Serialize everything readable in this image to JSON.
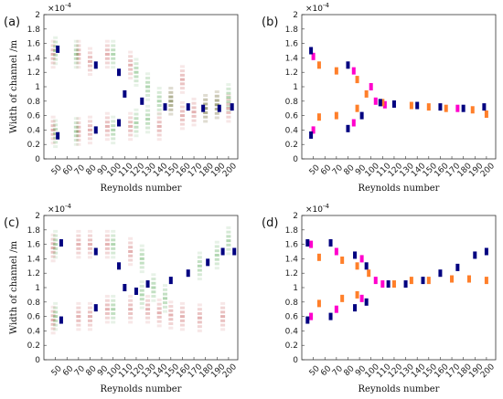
{
  "chart_data": [
    {
      "type": "scatter",
      "panel_label": "(a)",
      "xlabel": "Reynolds number",
      "ylabel": "Width of channel /m",
      "y_multiplier": "×10",
      "y_multiplier_exp": "-4",
      "x_ticks": [
        50,
        60,
        70,
        80,
        90,
        100,
        110,
        120,
        130,
        140,
        150,
        160,
        170,
        180,
        190,
        200
      ],
      "y_ticks": [
        0,
        0.2,
        0.4,
        0.6,
        0.8,
        1,
        1.2,
        1.4,
        1.6,
        1.8,
        2
      ],
      "ylim": [
        0,
        2
      ],
      "series": [
        {
          "color": "#b22222",
          "style": "smear",
          "points": [
            [
              48,
              1.45
            ],
            [
              48,
              0.4
            ],
            [
              70,
              1.45
            ],
            [
              70,
              0.38
            ],
            [
              80,
              1.35
            ],
            [
              80,
              0.4
            ],
            [
              95,
              1.45
            ],
            [
              95,
              0.45
            ],
            [
              115,
              1.3
            ],
            [
              115,
              0.45
            ],
            [
              140,
              0.45
            ],
            [
              150,
              0.8
            ],
            [
              160,
              0.6
            ],
            [
              160,
              1.1
            ],
            [
              170,
              0.65
            ],
            [
              180,
              0.7
            ],
            [
              190,
              0.75
            ],
            [
              200,
              0.7
            ]
          ]
        },
        {
          "color": "#228b22",
          "style": "smear",
          "points": [
            [
              50,
              1.5
            ],
            [
              50,
              0.35
            ],
            [
              68,
              1.45
            ],
            [
              68,
              0.38
            ],
            [
              100,
              1.45
            ],
            [
              100,
              0.4
            ],
            [
              120,
              1.2
            ],
            [
              120,
              0.5
            ],
            [
              130,
              1.0
            ],
            [
              130,
              0.55
            ],
            [
              140,
              0.8
            ],
            [
              150,
              0.8
            ],
            [
              180,
              0.7
            ],
            [
              190,
              0.75
            ],
            [
              200,
              0.85
            ]
          ]
        },
        {
          "color": "#000080",
          "style": "mean",
          "points": [
            [
              52,
              1.52
            ],
            [
              52,
              0.32
            ],
            [
              85,
              1.3
            ],
            [
              85,
              0.4
            ],
            [
              105,
              1.2
            ],
            [
              105,
              0.5
            ],
            [
              110,
              0.9
            ],
            [
              125,
              0.8
            ],
            [
              145,
              0.72
            ],
            [
              165,
              0.72
            ],
            [
              178,
              0.7
            ],
            [
              192,
              0.7
            ],
            [
              203,
              0.72
            ]
          ]
        }
      ]
    },
    {
      "type": "scatter",
      "panel_label": "(b)",
      "xlabel": "Reynolds number",
      "ylabel": "",
      "y_multiplier": "×10",
      "y_multiplier_exp": "-4",
      "x_ticks": [
        50,
        60,
        70,
        80,
        90,
        100,
        110,
        120,
        130,
        140,
        150,
        160,
        170,
        180,
        190,
        200
      ],
      "y_ticks": [
        0,
        0.2,
        0.4,
        0.6,
        0.8,
        1,
        1.2,
        1.4,
        1.6,
        1.8,
        2
      ],
      "ylim": [
        0,
        2
      ],
      "series": [
        {
          "color": "#ff00cc",
          "style": "mean",
          "points": [
            [
              50,
              1.42
            ],
            [
              50,
              0.4
            ],
            [
              85,
              1.22
            ],
            [
              85,
              0.5
            ],
            [
              100,
              1.0
            ],
            [
              104,
              0.8
            ],
            [
              112,
              0.75
            ],
            [
              175,
              0.7
            ]
          ]
        },
        {
          "color": "#ff7f2a",
          "style": "mean",
          "points": [
            [
              55,
              1.3
            ],
            [
              55,
              0.58
            ],
            [
              70,
              1.22
            ],
            [
              70,
              0.6
            ],
            [
              88,
              1.1
            ],
            [
              88,
              0.7
            ],
            [
              96,
              0.9
            ],
            [
              110,
              0.78
            ],
            [
              135,
              0.74
            ],
            [
              150,
              0.72
            ],
            [
              165,
              0.7
            ],
            [
              188,
              0.68
            ],
            [
              200,
              0.62
            ]
          ]
        },
        {
          "color": "#000080",
          "style": "mean",
          "points": [
            [
              48,
              1.5
            ],
            [
              48,
              0.33
            ],
            [
              80,
              1.3
            ],
            [
              80,
              0.42
            ],
            [
              92,
              0.6
            ],
            [
              108,
              0.78
            ],
            [
              120,
              0.76
            ],
            [
              140,
              0.74
            ],
            [
              160,
              0.72
            ],
            [
              180,
              0.7
            ],
            [
              198,
              0.72
            ]
          ]
        }
      ]
    },
    {
      "type": "scatter",
      "panel_label": "(c)",
      "xlabel": "Reynolds number",
      "ylabel": "Width of channel /m",
      "y_multiplier": "×10",
      "y_multiplier_exp": "-4",
      "x_ticks": [
        50,
        60,
        70,
        80,
        90,
        100,
        110,
        120,
        130,
        140,
        150,
        160,
        170,
        180,
        190,
        200
      ],
      "y_ticks": [
        0,
        0.2,
        0.4,
        0.6,
        0.8,
        1,
        1.2,
        1.4,
        1.6,
        1.8,
        2
      ],
      "ylim": [
        0,
        2
      ],
      "series": [
        {
          "color": "#b22222",
          "style": "smear",
          "points": [
            [
              48,
              1.55
            ],
            [
              48,
              0.55
            ],
            [
              70,
              1.6
            ],
            [
              70,
              0.6
            ],
            [
              80,
              1.6
            ],
            [
              80,
              0.6
            ],
            [
              95,
              1.6
            ],
            [
              95,
              0.7
            ],
            [
              115,
              1.5
            ],
            [
              115,
              0.7
            ],
            [
              130,
              0.7
            ],
            [
              140,
              0.65
            ],
            [
              150,
              0.62
            ],
            [
              160,
              0.6
            ],
            [
              175,
              0.58
            ],
            [
              195,
              0.6
            ]
          ]
        },
        {
          "color": "#228b22",
          "style": "smear",
          "points": [
            [
              50,
              1.6
            ],
            [
              50,
              0.6
            ],
            [
              100,
              1.6
            ],
            [
              100,
              0.7
            ],
            [
              125,
              1.4
            ],
            [
              125,
              0.9
            ],
            [
              135,
              1.0
            ],
            [
              145,
              0.85
            ],
            [
              175,
              1.3
            ],
            [
              190,
              1.45
            ],
            [
              200,
              1.65
            ]
          ]
        },
        {
          "color": "#000080",
          "style": "mean",
          "points": [
            [
              55,
              1.62
            ],
            [
              55,
              0.55
            ],
            [
              85,
              1.5
            ],
            [
              85,
              0.72
            ],
            [
              105,
              1.3
            ],
            [
              110,
              1.0
            ],
            [
              120,
              0.95
            ],
            [
              130,
              1.05
            ],
            [
              150,
              1.1
            ],
            [
              165,
              1.2
            ],
            [
              182,
              1.35
            ],
            [
              195,
              1.5
            ],
            [
              205,
              1.5
            ]
          ]
        }
      ]
    },
    {
      "type": "scatter",
      "panel_label": "(d)",
      "xlabel": "Reynolds number",
      "ylabel": "",
      "y_multiplier": "×10",
      "y_multiplier_exp": "-4",
      "x_ticks": [
        50,
        60,
        70,
        80,
        90,
        100,
        110,
        120,
        130,
        140,
        150,
        160,
        170,
        180,
        190,
        200
      ],
      "y_ticks": [
        0,
        0.2,
        0.4,
        0.6,
        0.8,
        1,
        1.2,
        1.4,
        1.6,
        1.8,
        2
      ],
      "ylim": [
        0,
        2
      ],
      "series": [
        {
          "color": "#ff00cc",
          "style": "mean",
          "points": [
            [
              48,
              1.6
            ],
            [
              48,
              0.6
            ],
            [
              70,
              1.5
            ],
            [
              70,
              0.7
            ],
            [
              92,
              1.4
            ],
            [
              92,
              0.85
            ],
            [
              104,
              1.1
            ],
            [
              110,
              1.05
            ]
          ]
        },
        {
          "color": "#ff7f2a",
          "style": "mean",
          "points": [
            [
              55,
              1.42
            ],
            [
              55,
              0.78
            ],
            [
              75,
              1.38
            ],
            [
              75,
              0.85
            ],
            [
              88,
              1.3
            ],
            [
              88,
              0.9
            ],
            [
              98,
              1.2
            ],
            [
              120,
              1.05
            ],
            [
              135,
              1.1
            ],
            [
              150,
              1.1
            ],
            [
              170,
              1.12
            ],
            [
              185,
              1.12
            ],
            [
              200,
              1.1
            ]
          ]
        },
        {
          "color": "#000080",
          "style": "mean",
          "points": [
            [
              45,
              1.62
            ],
            [
              45,
              0.55
            ],
            [
              65,
              1.62
            ],
            [
              65,
              0.6
            ],
            [
              86,
              1.45
            ],
            [
              86,
              0.72
            ],
            [
              96,
              1.3
            ],
            [
              96,
              0.8
            ],
            [
              115,
              1.05
            ],
            [
              130,
              1.05
            ],
            [
              145,
              1.1
            ],
            [
              160,
              1.2
            ],
            [
              175,
              1.28
            ],
            [
              190,
              1.45
            ],
            [
              200,
              1.5
            ]
          ]
        }
      ]
    }
  ]
}
